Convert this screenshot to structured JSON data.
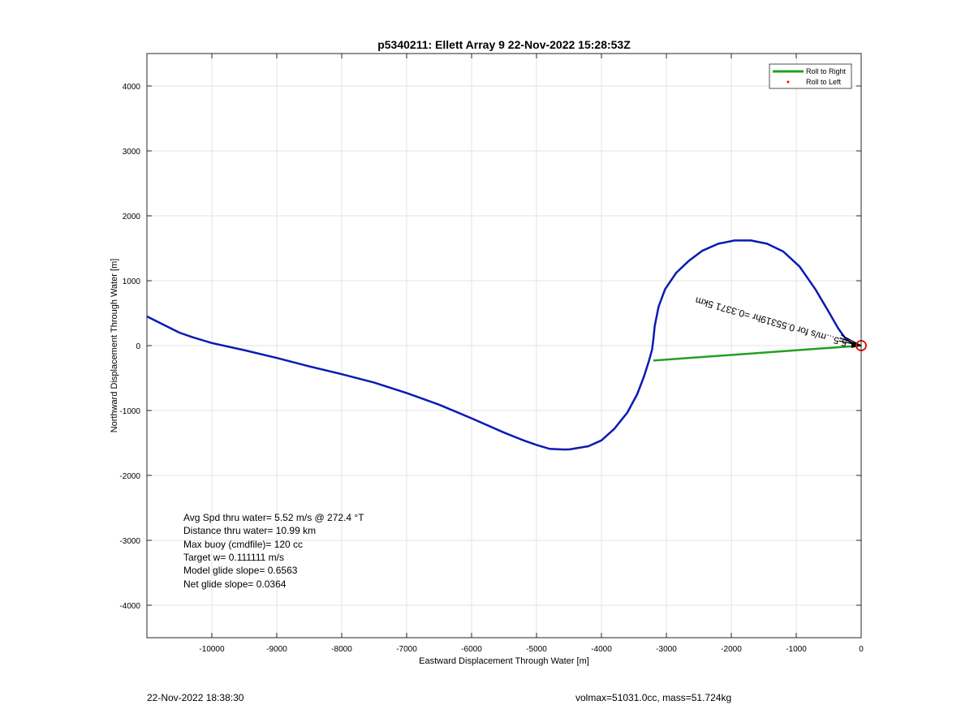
{
  "chart_data": {
    "type": "line",
    "title": "p5340211: Ellett Array 9 22-Nov-2022 15:28:53Z",
    "xlabel": "Eastward Displacement Through Water [m]",
    "ylabel": "Northward Displacement Through Water [m]",
    "xlim": [
      -11000,
      0
    ],
    "ylim": [
      -4500,
      4500
    ],
    "xticks": [
      -10000,
      -9000,
      -8000,
      -7000,
      -6000,
      -5000,
      -4000,
      -3000,
      -2000,
      -1000,
      0
    ],
    "yticks": [
      -4000,
      -3000,
      -2000,
      -1000,
      0,
      1000,
      2000,
      3000,
      4000
    ],
    "grid": true,
    "legend_position": "top-right",
    "legend": [
      {
        "label": "Roll to Right",
        "color": "#22a022",
        "marker": "line"
      },
      {
        "label": "Roll to Left",
        "color": "#ff0000",
        "marker": "dot"
      }
    ],
    "series": [
      {
        "name": "",
        "color": "#0a1ab4",
        "x": [
          -11000,
          -10700,
          -10500,
          -10300,
          -10000,
          -9500,
          -9000,
          -8500,
          -8000,
          -7500,
          -7000,
          -6500,
          -6000,
          -5500,
          -5200,
          -5000,
          -4800,
          -4600,
          -4500,
          -4200,
          -4000,
          -3800,
          -3600,
          -3450,
          -3350,
          -3270,
          -3220,
          -3200,
          -3180,
          -3120,
          -3020,
          -2850,
          -2650,
          -2450,
          -2200,
          -1950,
          -1700,
          -1450,
          -1200,
          -950,
          -700,
          -500,
          -350,
          -250,
          -150,
          -80,
          -40,
          0
        ],
        "y": [
          450,
          300,
          200,
          130,
          40,
          -70,
          -190,
          -320,
          -440,
          -570,
          -730,
          -910,
          -1120,
          -1340,
          -1460,
          -1530,
          -1590,
          -1600,
          -1600,
          -1550,
          -1460,
          -1280,
          -1030,
          -750,
          -490,
          -240,
          -60,
          100,
          300,
          600,
          870,
          1120,
          1310,
          1460,
          1570,
          1620,
          1620,
          1570,
          1450,
          1220,
          860,
          520,
          260,
          120,
          40,
          10,
          5,
          0
        ]
      },
      {
        "name": "",
        "color": "#22a022",
        "x": [
          -3200,
          0
        ],
        "y": [
          -230,
          0
        ]
      }
    ],
    "annotations": {
      "rotated_text": "5.5...m/s for 0.55319hr =0.3371 5km",
      "stats_lines": [
        "Avg Spd thru water=  5.52 m/s @ 272.4 °T",
        "Distance thru water= 10.99 km",
        "Max buoy (cmdfile)= 120 cc",
        "Target w= 0.111111 m/s",
        "Model glide slope= 0.6563",
        "Net glide slope= 0.0364"
      ]
    }
  },
  "footer": {
    "left": "22-Nov-2022 18:38:30",
    "right": "volmax=51031.0cc, mass=51.724kg"
  }
}
